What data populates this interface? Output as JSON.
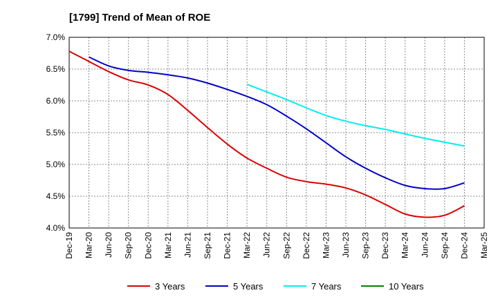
{
  "chart_data": {
    "type": "line",
    "title": "[1799]  Trend of Mean of ROE",
    "xlabel": "",
    "ylabel": "",
    "ylim": [
      4.0,
      7.0
    ],
    "yticks": [
      "7.0%",
      "6.5%",
      "6.0%",
      "5.5%",
      "5.0%",
      "4.5%",
      "4.0%"
    ],
    "ytick_values": [
      7.0,
      6.5,
      6.0,
      5.5,
      5.0,
      4.5,
      4.0
    ],
    "categories": [
      "Dec-19",
      "Mar-20",
      "Jun-20",
      "Sep-20",
      "Dec-20",
      "Mar-21",
      "Jun-21",
      "Sep-21",
      "Dec-21",
      "Mar-22",
      "Jun-22",
      "Sep-22",
      "Dec-22",
      "Mar-23",
      "Jun-23",
      "Sep-23",
      "Dec-23",
      "Mar-24",
      "Jun-24",
      "Sep-24",
      "Dec-24",
      "Mar-25"
    ],
    "grid": true,
    "legend_position": "bottom",
    "series": [
      {
        "name": "3 Years",
        "color": "#dd0000",
        "values": [
          6.78,
          6.62,
          6.46,
          6.33,
          6.25,
          6.1,
          5.85,
          5.58,
          5.32,
          5.1,
          4.94,
          4.8,
          4.73,
          4.69,
          4.63,
          4.52,
          4.37,
          4.22,
          4.17,
          4.2,
          4.35,
          null
        ]
      },
      {
        "name": "5 Years",
        "color": "#0000cc",
        "values": [
          null,
          6.69,
          6.55,
          6.48,
          6.45,
          6.41,
          6.36,
          6.28,
          6.18,
          6.07,
          5.94,
          5.76,
          5.56,
          5.34,
          5.12,
          4.94,
          4.79,
          4.67,
          4.62,
          4.62,
          4.71,
          null
        ]
      },
      {
        "name": "7 Years",
        "color": "#00eeee",
        "values": [
          null,
          null,
          null,
          null,
          null,
          null,
          null,
          null,
          null,
          6.26,
          6.14,
          6.02,
          5.89,
          5.77,
          5.68,
          5.61,
          5.55,
          5.48,
          5.41,
          5.35,
          5.29,
          null
        ]
      },
      {
        "name": "10 Years",
        "color": "#008000",
        "values": [
          null,
          null,
          null,
          null,
          null,
          null,
          null,
          null,
          null,
          null,
          null,
          null,
          null,
          null,
          null,
          null,
          null,
          null,
          null,
          null,
          null,
          null
        ]
      }
    ]
  }
}
